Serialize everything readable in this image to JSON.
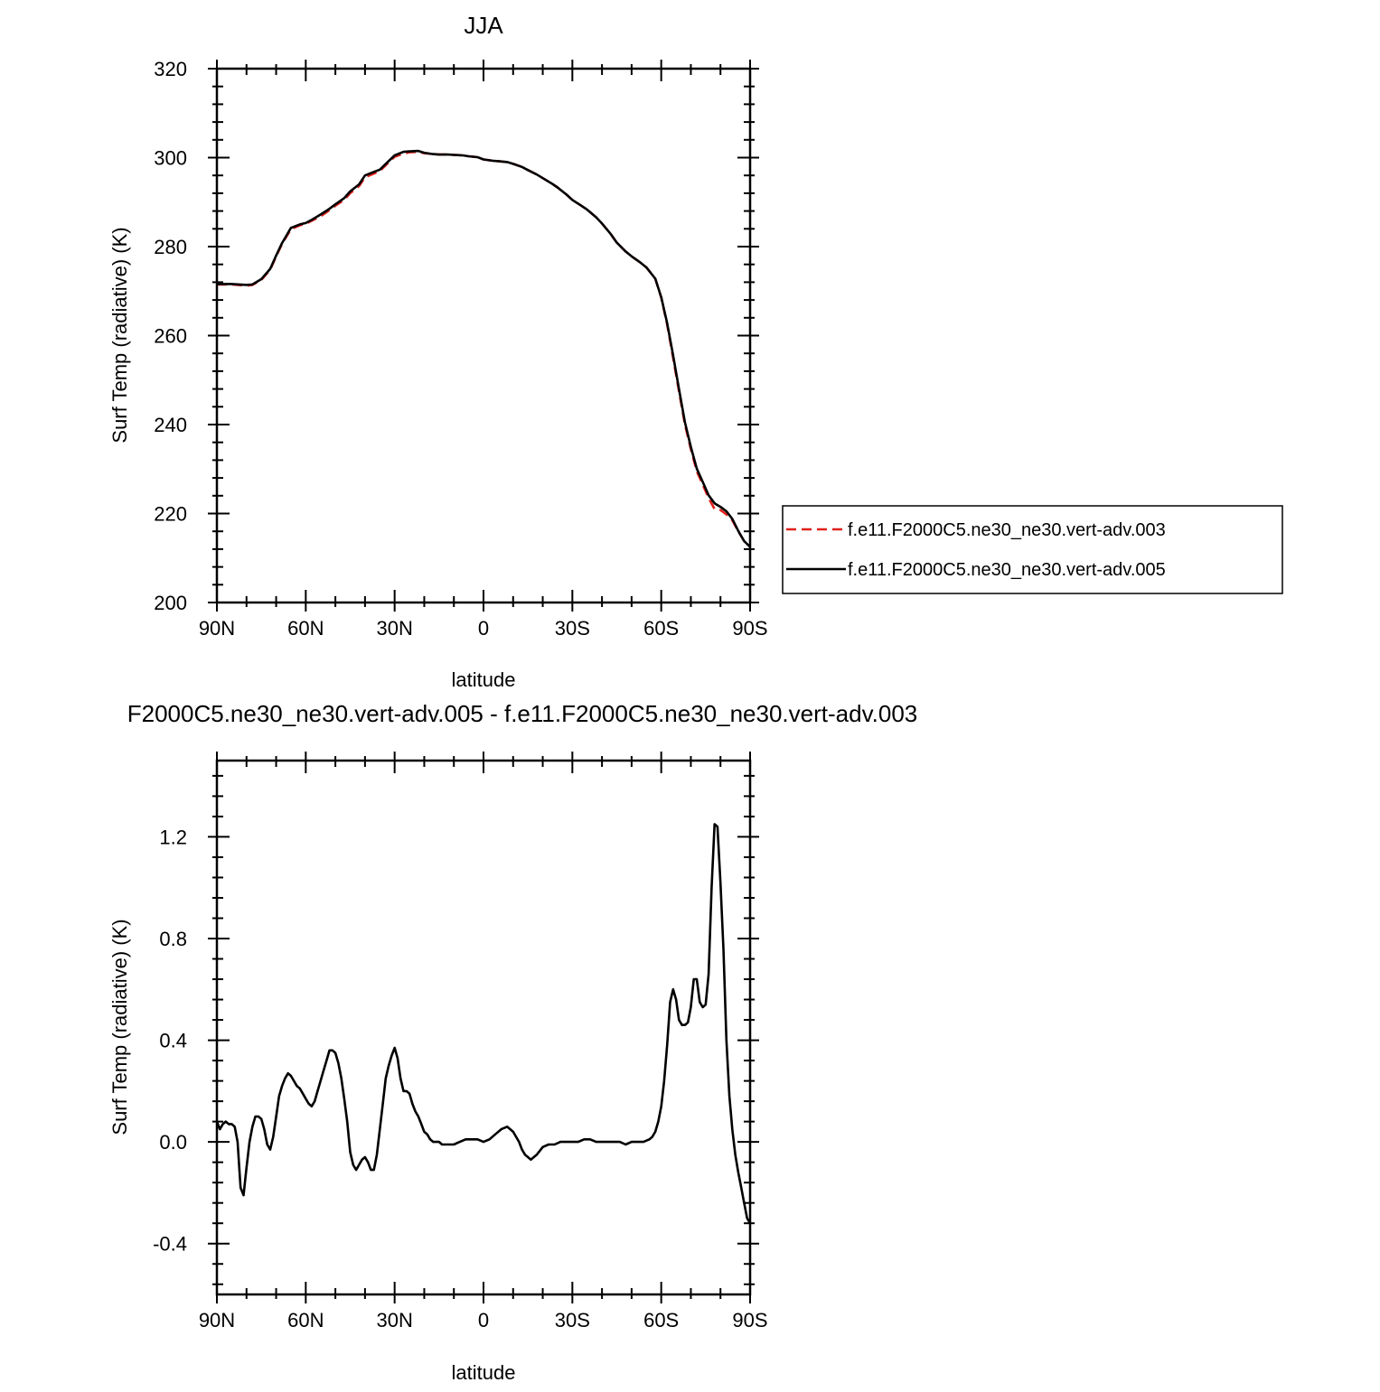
{
  "chart_data": [
    {
      "type": "line",
      "title": "JJA",
      "xlabel": "latitude",
      "ylabel": "Surf Temp (radiative) (K)",
      "xlim": [
        90,
        -90
      ],
      "ylim": [
        200,
        320
      ],
      "x_ticks": [
        90,
        60,
        30,
        0,
        -30,
        -60,
        -90
      ],
      "x_tick_labels": [
        "90N",
        "60N",
        "30N",
        "0",
        "30S",
        "60S",
        "90S"
      ],
      "y_ticks": [
        200,
        220,
        240,
        260,
        280,
        300,
        320
      ],
      "y_tick_labels": [
        "200",
        "220",
        "240",
        "260",
        "280",
        "300",
        "320"
      ],
      "legend_position": "right-outside-bottom",
      "series": [
        {
          "name": "f.e11.F2000C5.ne30_ne30.vert-adv.003",
          "color": "#e0201b",
          "dash": "dashed",
          "x": [
            90,
            85,
            80,
            78,
            75,
            72,
            70,
            68,
            65,
            62,
            60,
            58,
            55,
            52,
            50,
            47,
            45,
            42,
            40,
            37,
            35,
            33,
            30,
            27,
            25,
            22,
            20,
            17,
            15,
            12,
            10,
            7,
            5,
            2,
            0,
            -3,
            -5,
            -8,
            -10,
            -13,
            -15,
            -18,
            -20,
            -23,
            -25,
            -28,
            -30,
            -33,
            -35,
            -38,
            -40,
            -43,
            -45,
            -48,
            -50,
            -53,
            -55,
            -58,
            -60,
            -62,
            -64,
            -66,
            -68,
            -70,
            -72,
            -74,
            -76,
            -78,
            -80,
            -82,
            -84,
            -86,
            -88,
            -90
          ],
          "y": [
            271.5,
            271.5,
            271.2,
            271.4,
            272.5,
            274.8,
            277.8,
            280.6,
            283.9,
            284.8,
            285.1,
            285.8,
            286.8,
            288.2,
            289.2,
            290.5,
            292.0,
            293.6,
            295.6,
            296.4,
            297.0,
            298.3,
            300.2,
            300.9,
            301.2,
            301.3,
            301.0,
            300.8,
            300.7,
            300.7,
            300.6,
            300.5,
            300.3,
            300.1,
            299.6,
            299.3,
            299.2,
            299.0,
            298.6,
            297.9,
            297.2,
            296.2,
            295.4,
            294.2,
            293.3,
            291.7,
            290.5,
            289.2,
            288.3,
            286.6,
            285.2,
            282.8,
            280.9,
            278.9,
            277.8,
            276.4,
            275.3,
            272.8,
            268.5,
            262.5,
            255.0,
            247.5,
            240.0,
            234.5,
            229.5,
            226.5,
            223.5,
            221.0,
            220.8,
            219.8,
            218.5,
            216.0,
            213.8,
            212.7
          ]
        },
        {
          "name": "f.e11.F2000C5.ne30_ne30.vert-adv.005",
          "color": "#000000",
          "dash": "solid",
          "x": [
            90,
            85,
            80,
            78,
            75,
            72,
            70,
            68,
            65,
            62,
            60,
            58,
            55,
            52,
            50,
            47,
            45,
            42,
            40,
            37,
            35,
            33,
            30,
            27,
            25,
            22,
            20,
            17,
            15,
            12,
            10,
            7,
            5,
            2,
            0,
            -3,
            -5,
            -8,
            -10,
            -13,
            -15,
            -18,
            -20,
            -23,
            -25,
            -28,
            -30,
            -33,
            -35,
            -38,
            -40,
            -43,
            -45,
            -48,
            -50,
            -53,
            -55,
            -58,
            -60,
            -62,
            -64,
            -66,
            -68,
            -70,
            -72,
            -74,
            -76,
            -78,
            -80,
            -82,
            -84,
            -86,
            -88,
            -90
          ],
          "y": [
            271.6,
            271.6,
            271.4,
            271.5,
            272.7,
            275.0,
            278.0,
            280.8,
            284.2,
            285.0,
            285.3,
            286.0,
            287.2,
            288.5,
            289.5,
            290.9,
            292.4,
            294.0,
            296.0,
            296.8,
            297.3,
            298.6,
            300.5,
            301.3,
            301.4,
            301.5,
            301.1,
            300.8,
            300.7,
            300.7,
            300.6,
            300.5,
            300.3,
            300.1,
            299.6,
            299.3,
            299.2,
            299.0,
            298.6,
            297.9,
            297.2,
            296.2,
            295.4,
            294.2,
            293.3,
            291.7,
            290.5,
            289.2,
            288.3,
            286.6,
            285.2,
            282.8,
            280.9,
            278.9,
            277.8,
            276.4,
            275.3,
            272.8,
            268.6,
            262.8,
            255.6,
            248.0,
            240.5,
            235.0,
            230.1,
            227.1,
            224.1,
            222.3,
            221.5,
            220.5,
            218.8,
            216.1,
            213.8,
            212.5
          ]
        }
      ]
    },
    {
      "type": "line",
      "title": "F2000C5.ne30_ne30.vert-adv.005 - f.e11.F2000C5.ne30_ne30.vert-adv.003",
      "xlabel": "latitude",
      "ylabel": "Surf Temp (radiative) (K)",
      "xlim": [
        90,
        -90
      ],
      "ylim": [
        -0.6,
        1.5
      ],
      "x_ticks": [
        90,
        60,
        30,
        0,
        -30,
        -60,
        -90
      ],
      "x_tick_labels": [
        "90N",
        "60N",
        "30N",
        "0",
        "30S",
        "60S",
        "90S"
      ],
      "y_ticks": [
        -0.4,
        0.0,
        0.4,
        0.8,
        1.2
      ],
      "y_tick_labels": [
        "-0.4",
        "0.0",
        "0.4",
        "0.8",
        "1.2"
      ],
      "series": [
        {
          "color": "#000000",
          "dash": "solid",
          "x": [
            90,
            89,
            88,
            87,
            86,
            85,
            84,
            83,
            82,
            81,
            80,
            79,
            78,
            77,
            76,
            75,
            74,
            73,
            72,
            71,
            70,
            69,
            68,
            67,
            66,
            65,
            64,
            63,
            62,
            61,
            60,
            59,
            58,
            57,
            56,
            55,
            54,
            53,
            52,
            51,
            50,
            49,
            48,
            47,
            46,
            45,
            44,
            43,
            42,
            41,
            40,
            39,
            38,
            37,
            36,
            35,
            34,
            33,
            32,
            31,
            30,
            29,
            28,
            27,
            26,
            25,
            24,
            23,
            22,
            21,
            20,
            19,
            18,
            17,
            16,
            15,
            14,
            12,
            10,
            8,
            6,
            4,
            2,
            0,
            -2,
            -4,
            -6,
            -8,
            -10,
            -12,
            -13,
            -14,
            -15,
            -16,
            -17,
            -18,
            -20,
            -22,
            -24,
            -26,
            -28,
            -30,
            -32,
            -34,
            -36,
            -38,
            -40,
            -42,
            -44,
            -46,
            -48,
            -50,
            -52,
            -54,
            -56,
            -57,
            -58,
            -59,
            -60,
            -61,
            -62,
            -63,
            -64,
            -65,
            -66,
            -67,
            -68,
            -69,
            -70,
            -71,
            -72,
            -73,
            -74,
            -75,
            -76,
            -77,
            -78,
            -79,
            -80,
            -81,
            -82,
            -83,
            -84,
            -85,
            -86,
            -87,
            -88,
            -89,
            -90
          ],
          "y": [
            0.08,
            0.05,
            0.07,
            0.08,
            0.07,
            0.07,
            0.06,
            0.0,
            -0.18,
            -0.21,
            -0.1,
            0.0,
            0.06,
            0.1,
            0.1,
            0.09,
            0.05,
            -0.01,
            -0.03,
            0.02,
            0.1,
            0.18,
            0.22,
            0.25,
            0.27,
            0.26,
            0.24,
            0.22,
            0.21,
            0.19,
            0.17,
            0.15,
            0.14,
            0.16,
            0.2,
            0.24,
            0.28,
            0.32,
            0.36,
            0.36,
            0.35,
            0.31,
            0.25,
            0.17,
            0.08,
            -0.04,
            -0.09,
            -0.11,
            -0.09,
            -0.07,
            -0.06,
            -0.08,
            -0.11,
            -0.11,
            -0.05,
            0.05,
            0.15,
            0.25,
            0.3,
            0.34,
            0.37,
            0.33,
            0.25,
            0.2,
            0.2,
            0.19,
            0.15,
            0.12,
            0.1,
            0.07,
            0.04,
            0.03,
            0.01,
            0.0,
            0.0,
            0.0,
            -0.01,
            -0.01,
            -0.01,
            0.0,
            0.01,
            0.01,
            0.01,
            0.0,
            0.01,
            0.03,
            0.05,
            0.06,
            0.04,
            0.0,
            -0.03,
            -0.05,
            -0.06,
            -0.07,
            -0.06,
            -0.05,
            -0.02,
            -0.01,
            -0.01,
            0.0,
            0.0,
            0.0,
            0.0,
            0.01,
            0.01,
            0.0,
            0.0,
            0.0,
            0.0,
            0.0,
            -0.01,
            0.0,
            0.0,
            0.0,
            0.01,
            0.02,
            0.04,
            0.08,
            0.14,
            0.24,
            0.38,
            0.55,
            0.6,
            0.56,
            0.48,
            0.46,
            0.46,
            0.47,
            0.53,
            0.64,
            0.64,
            0.55,
            0.53,
            0.54,
            0.66,
            1.0,
            1.25,
            1.24,
            1.02,
            0.76,
            0.4,
            0.18,
            0.05,
            -0.05,
            -0.12,
            -0.18,
            -0.24,
            -0.3,
            -0.32
          ]
        }
      ]
    }
  ]
}
